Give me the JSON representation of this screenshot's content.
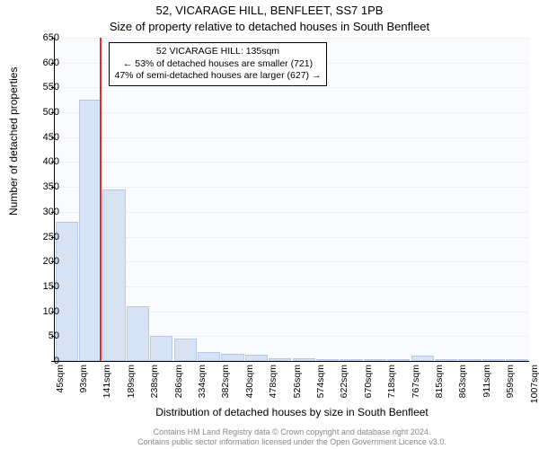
{
  "title_line1": "52, VICARAGE HILL, BENFLEET, SS7 1PB",
  "title_line2": "Size of property relative to detached houses in South Benfleet",
  "ylabel": "Number of detached properties",
  "xlabel": "Distribution of detached houses by size in South Benfleet",
  "caption_line1": "Contains HM Land Registry data © Crown copyright and database right 2024.",
  "caption_line2": "Contains public sector information licensed under the Open Government Licence v3.0.",
  "chart": {
    "type": "bar",
    "ylim": [
      0,
      650
    ],
    "ytick_step": 50,
    "plot_bg": "#fafbfe",
    "grid_color": "#eef0f6",
    "bar_fill": "#d7e2f4",
    "bar_border": "#b8c8e6",
    "refline_color": "#e03030",
    "refline_x_sqm": 135,
    "bin_width_sqm": 48,
    "xticks": [
      "45sqm",
      "93sqm",
      "141sqm",
      "189sqm",
      "238sqm",
      "286sqm",
      "334sqm",
      "382sqm",
      "430sqm",
      "478sqm",
      "526sqm",
      "574sqm",
      "622sqm",
      "670sqm",
      "718sqm",
      "767sqm",
      "815sqm",
      "863sqm",
      "911sqm",
      "959sqm",
      "1007sqm"
    ],
    "bars": [
      280,
      525,
      345,
      110,
      50,
      45,
      18,
      15,
      12,
      6,
      6,
      3,
      3,
      2,
      2,
      10,
      2,
      2,
      1,
      1
    ]
  },
  "annotation": {
    "line1": "52 VICARAGE HILL: 135sqm",
    "line2": "← 53% of detached houses are smaller (721)",
    "line3": "47% of semi-detached houses are larger (627) →"
  }
}
